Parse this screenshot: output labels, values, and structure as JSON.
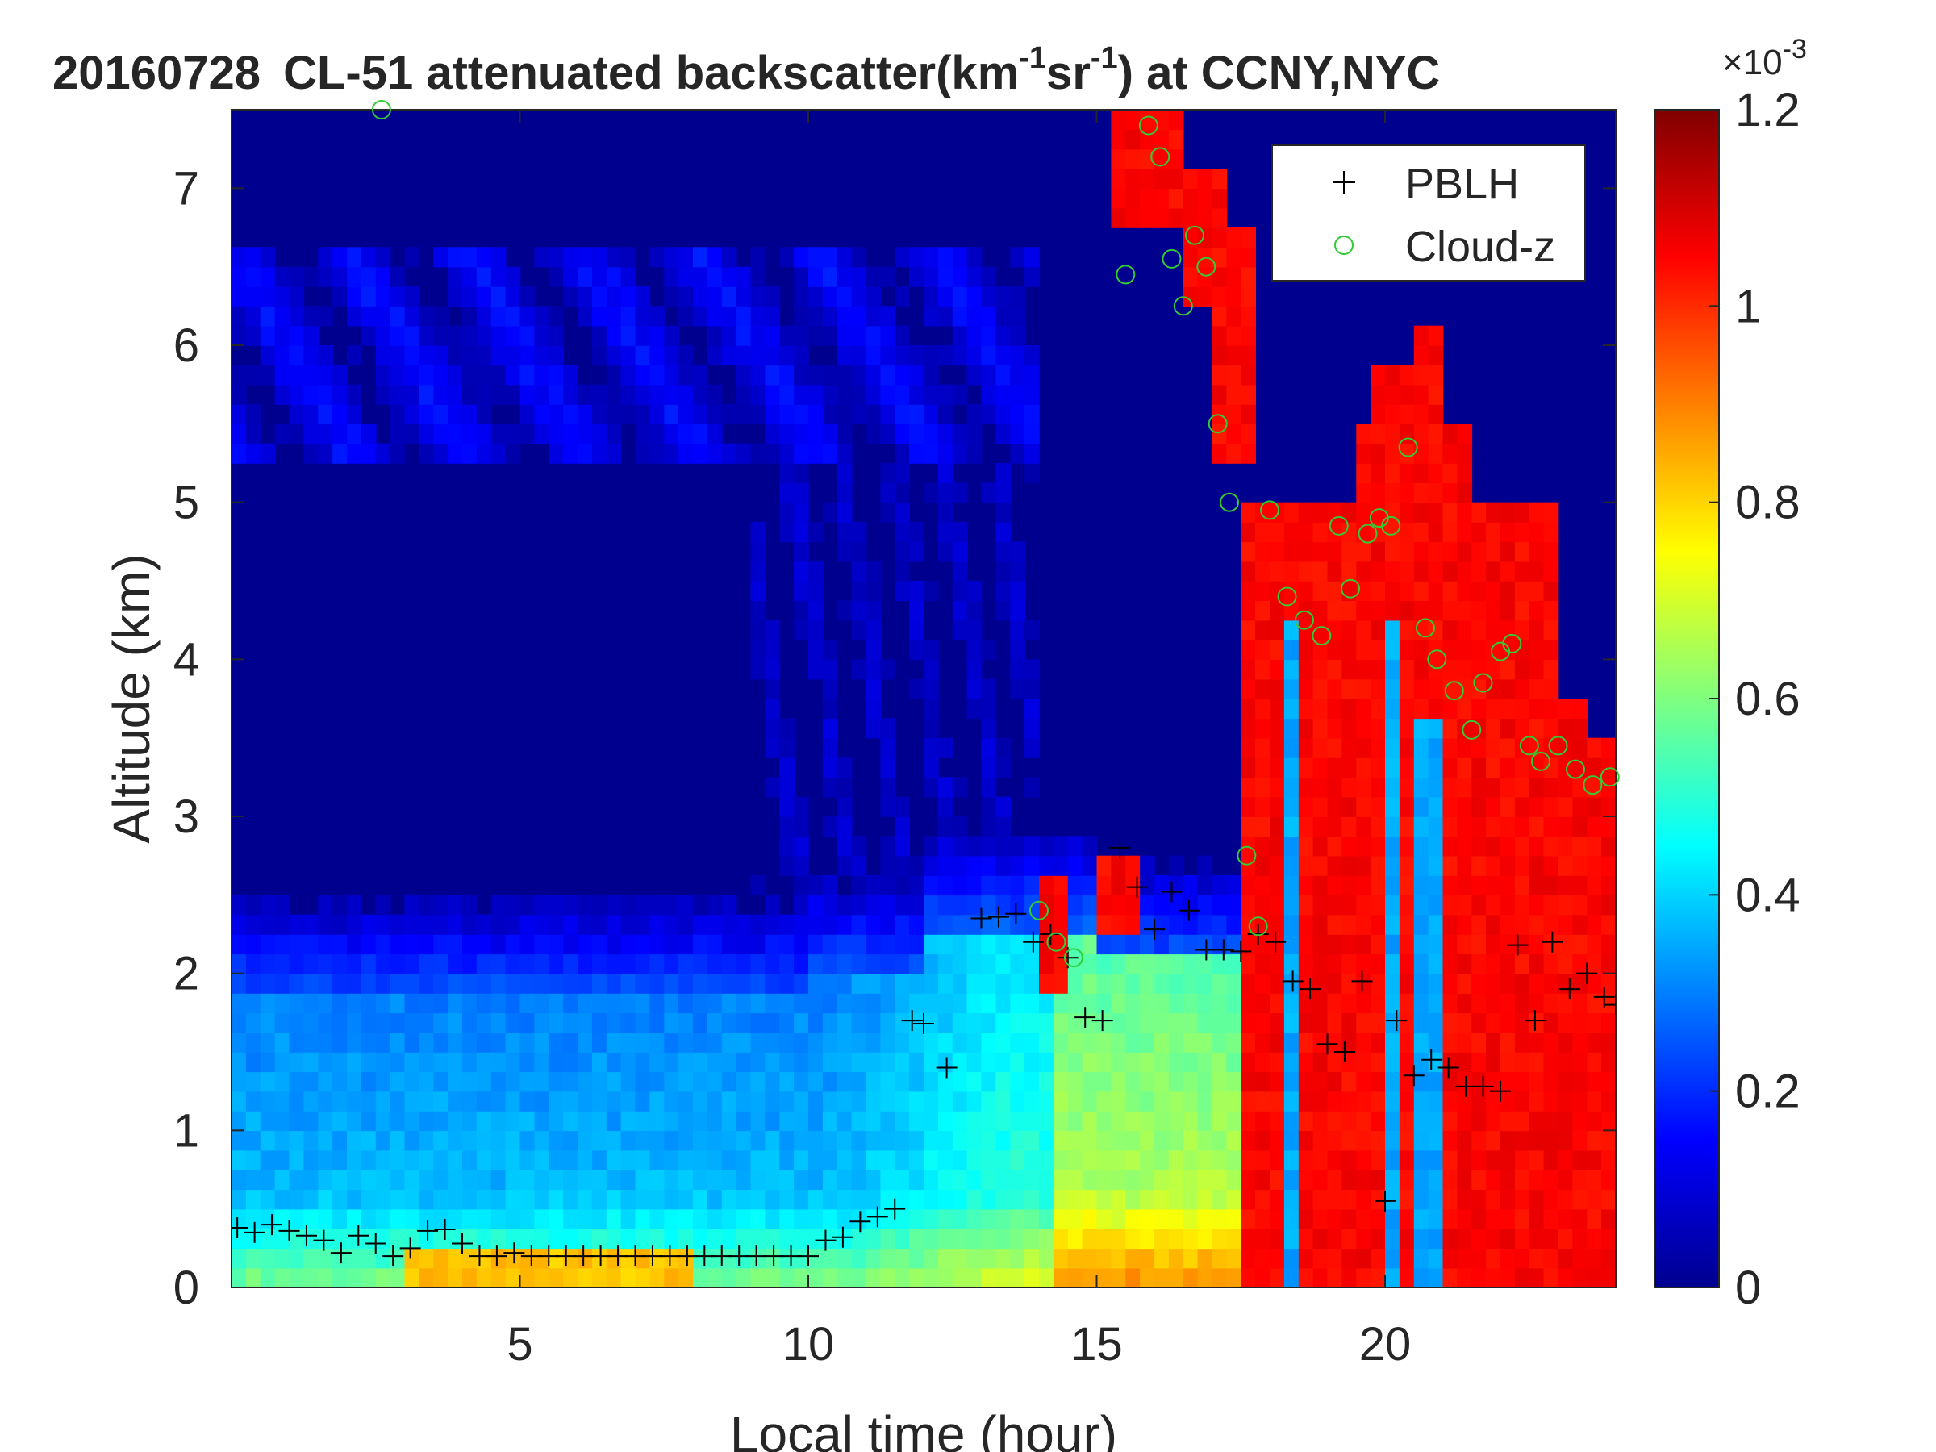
{
  "chart_data": {
    "type": "heatmap",
    "title_date": "20160728",
    "title_text": "CL-51 attenuated backscatter(km",
    "title_sup1": "-1",
    "title_mid": "sr",
    "title_sup2": "-1",
    "title_end": ") at CCNY,NYC",
    "xlabel": "Local time (hour)",
    "ylabel": "Altitude (km)",
    "xlim": [
      0,
      24
    ],
    "ylim": [
      0,
      7.5
    ],
    "x_ticks": [
      5,
      10,
      15,
      20
    ],
    "y_ticks": [
      0,
      1,
      2,
      3,
      4,
      5,
      6,
      7
    ],
    "colorbar": {
      "colormap": "jet",
      "range": [
        0,
        0.0012
      ],
      "ticks": [
        0,
        0.2,
        0.4,
        0.6,
        0.8,
        1,
        1.2
      ],
      "tick_labels": [
        "0",
        "0.2",
        "0.4",
        "0.6",
        "0.8",
        "1",
        "1.2"
      ],
      "exponent_base": "×10",
      "exponent": "-3"
    },
    "legend": {
      "location": "top-right",
      "entries": [
        {
          "label": "PBLH",
          "marker": "+",
          "color": "#000000"
        },
        {
          "label": "Cloud-z",
          "marker": "o",
          "color": "#33cc33"
        }
      ]
    },
    "pblh": {
      "x": [
        0.1,
        0.4,
        0.7,
        1.0,
        1.3,
        1.6,
        1.9,
        2.2,
        2.5,
        2.8,
        3.1,
        3.4,
        3.7,
        4.0,
        4.3,
        4.6,
        4.9,
        5.2,
        5.5,
        5.8,
        6.1,
        6.4,
        6.7,
        7.0,
        7.3,
        7.6,
        7.9,
        8.2,
        8.5,
        8.8,
        9.1,
        9.4,
        9.7,
        10.0,
        10.3,
        10.6,
        10.9,
        11.2,
        11.5,
        11.8,
        12.0,
        12.4,
        13.0,
        13.3,
        13.6,
        13.9,
        14.2,
        14.5,
        14.8,
        15.1,
        15.4,
        15.7,
        16.0,
        16.3,
        16.6,
        16.9,
        17.2,
        17.5,
        17.8,
        18.1,
        18.4,
        18.7,
        19.0,
        19.3,
        19.6,
        20.0,
        20.2,
        20.5,
        20.8,
        21.1,
        21.4,
        21.7,
        22.0,
        22.3,
        22.6,
        22.9,
        23.2,
        23.5,
        23.8,
        24.0
      ],
      "y": [
        0.38,
        0.35,
        0.4,
        0.36,
        0.33,
        0.3,
        0.22,
        0.33,
        0.28,
        0.2,
        0.25,
        0.36,
        0.37,
        0.28,
        0.2,
        0.2,
        0.22,
        0.2,
        0.2,
        0.2,
        0.2,
        0.2,
        0.2,
        0.2,
        0.2,
        0.2,
        0.2,
        0.2,
        0.2,
        0.2,
        0.2,
        0.2,
        0.2,
        0.2,
        0.3,
        0.32,
        0.42,
        0.45,
        0.5,
        1.7,
        1.68,
        1.4,
        2.35,
        2.36,
        2.38,
        2.2,
        2.25,
        2.1,
        1.72,
        1.7,
        2.8,
        2.55,
        2.28,
        2.52,
        2.4,
        2.15,
        2.15,
        2.14,
        2.25,
        2.2,
        1.95,
        1.9,
        1.55,
        1.5,
        1.95,
        0.55,
        1.7,
        1.35,
        1.45,
        1.4,
        1.28,
        1.28,
        1.25,
        2.18,
        1.7,
        2.2,
        1.9,
        2.0,
        1.85,
        1.8
      ]
    },
    "cloud_z": {
      "x": [
        2.6,
        15.5,
        15.9,
        16.1,
        16.3,
        16.5,
        16.7,
        16.9,
        17.1,
        17.3,
        17.6,
        17.8,
        18.0,
        18.3,
        18.6,
        18.9,
        19.2,
        19.4,
        19.7,
        19.9,
        20.1,
        20.4,
        20.7,
        20.9,
        21.2,
        21.5,
        21.7,
        22.0,
        22.2,
        22.5,
        22.7,
        23.0,
        23.3,
        23.6,
        23.9,
        14.0,
        14.3,
        14.6
      ],
      "y": [
        7.5,
        6.45,
        7.4,
        7.2,
        6.55,
        6.25,
        6.7,
        6.5,
        5.5,
        5.0,
        2.75,
        2.3,
        4.95,
        4.4,
        4.25,
        4.15,
        4.85,
        4.45,
        4.8,
        4.9,
        4.85,
        5.35,
        4.2,
        4.0,
        3.8,
        3.55,
        3.85,
        4.05,
        4.1,
        3.45,
        3.35,
        3.45,
        3.3,
        3.2,
        3.25,
        2.4,
        2.2,
        2.1
      ]
    }
  }
}
